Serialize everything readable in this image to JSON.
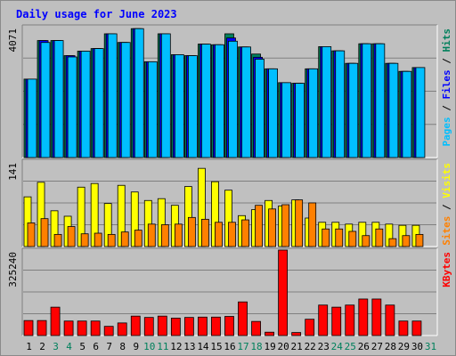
{
  "chart_data": {
    "type": "bar",
    "title": "Daily usage for June 2023",
    "categories": [
      "1",
      "2",
      "3",
      "4",
      "5",
      "6",
      "7",
      "8",
      "9",
      "10",
      "11",
      "12",
      "13",
      "14",
      "15",
      "16",
      "17",
      "18",
      "19",
      "20",
      "21",
      "22",
      "23",
      "24",
      "25",
      "26",
      "27",
      "28",
      "29",
      "30",
      "31"
    ],
    "weekend_days": [
      "3",
      "4",
      "10",
      "11",
      "17",
      "18",
      "24",
      "25",
      "31"
    ],
    "panels": [
      {
        "id": "pages-files-hits",
        "ymax_label": "4071",
        "ymax": 4071,
        "legend": [
          {
            "text": "Pages",
            "color": "#00bfff"
          },
          {
            "text": " / ",
            "color": "#000000"
          },
          {
            "text": "Files",
            "color": "#0000ff"
          },
          {
            "text": " / ",
            "color": "#000000"
          },
          {
            "text": "Hits",
            "color": "#00805c"
          }
        ],
        "series": [
          {
            "name": "Hits",
            "color": "#00805c",
            "values": [
              2440,
              3640,
              3640,
              3170,
              3310,
              3390,
              3850,
              3580,
              4010,
              2980,
              3850,
              3200,
              3170,
              3530,
              3510,
              3850,
              3440,
              3220,
              2760,
              2330,
              2310,
              2760,
              3450,
              3320,
              2930,
              3540,
              3540,
              2930,
              2680,
              2800,
              null
            ]
          },
          {
            "name": "Files",
            "color": "#0000ff",
            "values": [
              2440,
              3640,
              3640,
              3170,
              3310,
              3390,
              3850,
              3580,
              4010,
              2980,
              3850,
              3200,
              3170,
              3530,
              3510,
              3720,
              3440,
              3120,
              2760,
              2330,
              2310,
              2760,
              3450,
              3320,
              2930,
              3540,
              3540,
              2930,
              2680,
              2800,
              null
            ]
          },
          {
            "name": "Pages",
            "color": "#00bfff",
            "values": [
              2440,
              3580,
              3640,
              3130,
              3310,
              3390,
              3850,
              3580,
              4010,
              2980,
              3850,
              3200,
              3170,
              3530,
              3510,
              3620,
              3440,
              3060,
              2760,
              2330,
              2310,
              2760,
              3450,
              3320,
              2930,
              3540,
              3540,
              2930,
              2680,
              2800,
              null
            ]
          }
        ]
      },
      {
        "id": "visits-sites",
        "ymax_label": "141",
        "ymax": 141,
        "legend": [
          {
            "text": "Sites",
            "color": "#ff8000"
          },
          {
            "text": " / ",
            "color": "#000000"
          },
          {
            "text": "Visits",
            "color": "#ffff00"
          }
        ],
        "series": [
          {
            "name": "Visits",
            "color": "#ffff00",
            "values": [
              82,
              106,
              59,
              50,
              98,
              104,
              71,
              101,
              90,
              76,
              79,
              68,
              99,
              129,
              107,
              93,
              51,
              61,
              76,
              67,
              77,
              47,
              40,
              40,
              37,
              40,
              40,
              37,
              35,
              35,
              null
            ]
          },
          {
            "name": "Sites",
            "color": "#ff8000",
            "values": [
              39,
              46,
              20,
              33,
              21,
              22,
              20,
              24,
              27,
              37,
              36,
              37,
              48,
              45,
              40,
              40,
              44,
              68,
              62,
              69,
              77,
              72,
              29,
              29,
              25,
              18,
              29,
              13,
              18,
              20,
              null
            ]
          }
        ]
      },
      {
        "id": "kbytes",
        "ymax_label": "325240",
        "ymax": 325240,
        "legend": [
          {
            "text": "KBytes",
            "color": "#ff0000"
          }
        ],
        "series": [
          {
            "name": "KBytes",
            "color": "#ff0000",
            "values": [
              57100,
              57100,
              108000,
              55200,
              55200,
              55200,
              35000,
              47900,
              74000,
              68900,
              74000,
              66300,
              68900,
              70200,
              70200,
              72800,
              128000,
              53700,
              12800,
              325240,
              11500,
              62000,
              116000,
              108000,
              116000,
              139000,
              139000,
              116000,
              55200,
              55200,
              null
            ]
          }
        ]
      }
    ]
  }
}
